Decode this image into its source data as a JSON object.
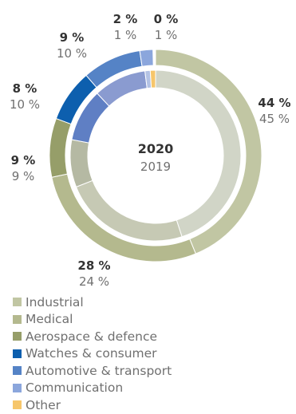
{
  "chart_data": {
    "type": "donut",
    "center_label_primary": "2020",
    "center_label_secondary": "2019",
    "categories": [
      "Industrial",
      "Medical",
      "Aerospace & defence",
      "Watches & consumer",
      "Automotive & transport",
      "Communication",
      "Other"
    ],
    "series": [
      {
        "name": "2020",
        "values": [
          44,
          28,
          9,
          8,
          9,
          2,
          0
        ]
      },
      {
        "name": "2019",
        "values": [
          45,
          24,
          9,
          10,
          10,
          1,
          1
        ]
      }
    ],
    "labels_2020": [
      "44 %",
      "28 %",
      "9 %",
      "8 %",
      "9 %",
      "2 %",
      "0 %"
    ],
    "labels_2019": [
      "45 %",
      "24 %",
      "9 %",
      "10 %",
      "10 %",
      "1 %",
      "1 %"
    ],
    "colors_outer": [
      "#c1c6a3",
      "#b4b98e",
      "#969e69",
      "#0d5fae",
      "#5583c6",
      "#8ba6dc",
      "#f6c66b"
    ],
    "colors_inner": [
      "#d1d5c7",
      "#c6c9b4",
      "#b5b9a3",
      "#5f7fc4",
      "#8a9bd0",
      "#b3c2e4",
      "#f6c66b"
    ],
    "legend_position": "bottom-left"
  }
}
